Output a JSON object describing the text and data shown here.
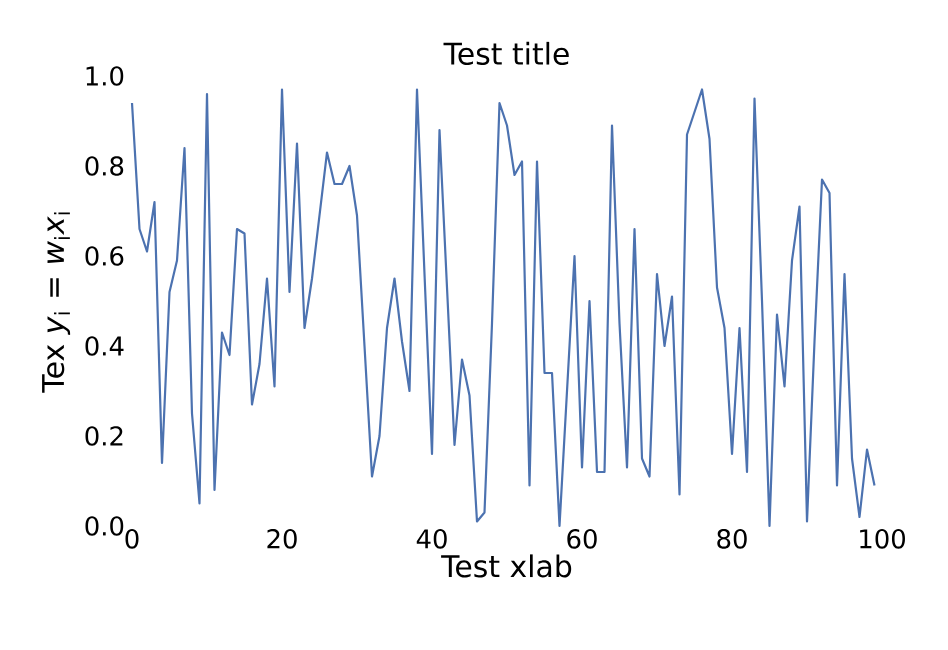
{
  "chart_data": {
    "type": "line",
    "title": "Test title",
    "xlabel": "Test xlab",
    "ylabel": "Tex *y*$_{i}$ = *w*$_{i}$*x*$_{i}$",
    "x": [
      0,
      1,
      2,
      3,
      4,
      5,
      6,
      7,
      8,
      9,
      10,
      11,
      12,
      13,
      14,
      15,
      16,
      17,
      18,
      19,
      20,
      21,
      22,
      23,
      24,
      25,
      26,
      27,
      28,
      29,
      30,
      31,
      32,
      33,
      34,
      35,
      36,
      37,
      38,
      39,
      40,
      41,
      42,
      43,
      44,
      45,
      46,
      47,
      48,
      49,
      50,
      51,
      52,
      53,
      54,
      55,
      56,
      57,
      58,
      59,
      60,
      61,
      62,
      63,
      64,
      65,
      66,
      67,
      68,
      69,
      70,
      71,
      72,
      73,
      74,
      75,
      76,
      77,
      78,
      79,
      80,
      81,
      82,
      83,
      84,
      85,
      86,
      87,
      88,
      89,
      90,
      91,
      92,
      93,
      94,
      95,
      96,
      97,
      98,
      99
    ],
    "series": [
      {
        "color": "#4c72b0",
        "values": [
          0.94,
          0.66,
          0.61,
          0.72,
          0.14,
          0.52,
          0.59,
          0.84,
          0.25,
          0.05,
          0.96,
          0.08,
          0.43,
          0.38,
          0.66,
          0.65,
          0.27,
          0.36,
          0.55,
          0.31,
          0.97,
          0.52,
          0.85,
          0.44,
          0.55,
          0.69,
          0.83,
          0.76,
          0.76,
          0.8,
          0.69,
          0.4,
          0.11,
          0.2,
          0.44,
          0.55,
          0.41,
          0.3,
          0.97,
          0.56,
          0.16,
          0.88,
          0.53,
          0.18,
          0.37,
          0.29,
          0.01,
          0.03,
          0.45,
          0.94,
          0.89,
          0.78,
          0.81,
          0.09,
          0.81,
          0.34,
          0.34,
          0.0,
          0.3,
          0.6,
          0.13,
          0.5,
          0.12,
          0.12,
          0.89,
          0.45,
          0.13,
          0.66,
          0.15,
          0.11,
          0.56,
          0.4,
          0.51,
          0.07,
          0.87,
          0.92,
          0.97,
          0.86,
          0.53,
          0.44,
          0.16,
          0.44,
          0.12,
          0.95,
          0.5,
          0.0,
          0.47,
          0.31,
          0.59,
          0.71,
          0.01,
          0.41,
          0.77,
          0.74,
          0.09,
          0.56,
          0.15,
          0.02,
          0.17,
          0.09
        ]
      }
    ],
    "xlim": [
      0,
      100
    ],
    "ylim": [
      0,
      1.0
    ],
    "xticks": [
      0,
      20,
      40,
      60,
      80,
      100
    ],
    "yticks": [
      {
        "value": 0,
        "label": "0.0"
      },
      {
        "value": 0.2,
        "label": "0.2"
      },
      {
        "value": 0.4,
        "label": "0.4"
      },
      {
        "value": 0.6,
        "label": "0.6"
      },
      {
        "value": 0.8,
        "label": "0.8"
      },
      {
        "value": 1.0,
        "label": "1.0"
      }
    ]
  }
}
